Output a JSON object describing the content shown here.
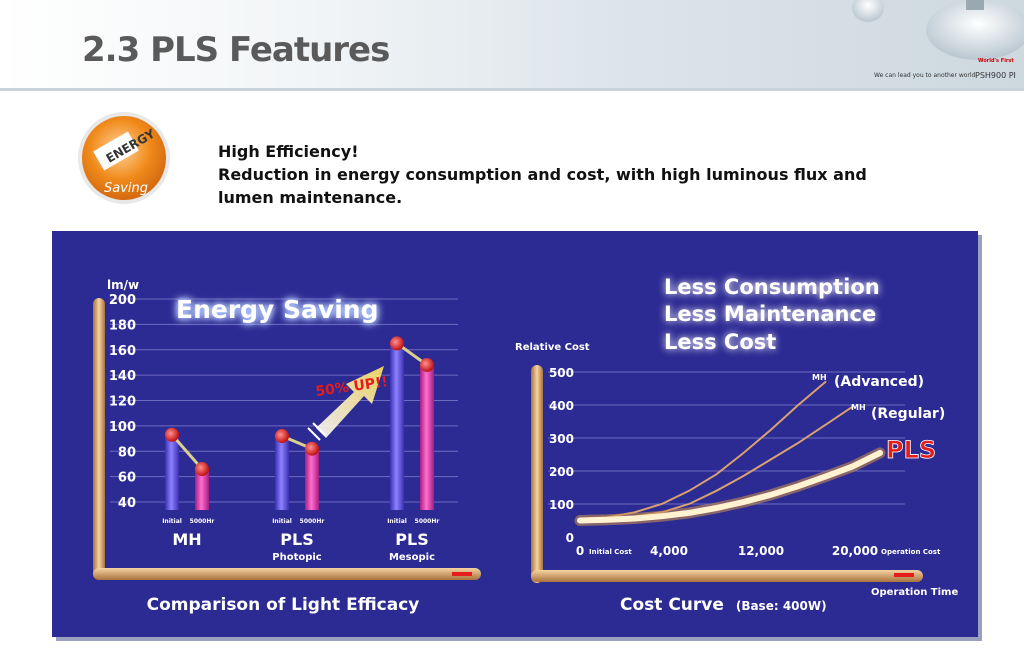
{
  "header": {
    "title": "2.3 PLS Features",
    "tagline": "We can lead you to another world",
    "brand": "PSH900 PI",
    "world_first": "World's First"
  },
  "badge": {
    "word": "ENERGY",
    "sub": "Saving"
  },
  "intro": {
    "line1": "High Efficiency!",
    "line2": "Reduction in energy consumption and cost, with high luminous flux and lumen maintenance."
  },
  "colors": {
    "panel": "#2c2a93",
    "bar_initial": "#6a5df0",
    "bar_5000": "#e93fb5",
    "axis_frame": "#d8a267",
    "accent_red": "#e51c1c"
  },
  "left_chart_title": "Energy Saving",
  "increase_label": "50% UP!!",
  "headline": [
    "Less Consumption",
    "Less Maintenance",
    "Less Cost"
  ],
  "chart_data": [
    {
      "type": "bar",
      "title": "Comparison of Light Efficacy",
      "ylabel": "lm/w",
      "ylim": [
        40,
        200
      ],
      "yticks": [
        40,
        60,
        80,
        100,
        120,
        140,
        160,
        180,
        200
      ],
      "groups": [
        {
          "name": "MH",
          "sub": "",
          "bars": [
            {
              "label": "Initial",
              "value": 93
            },
            {
              "label": "5000Hr",
              "value": 66
            }
          ]
        },
        {
          "name": "PLS",
          "sub": "Photopic",
          "bars": [
            {
              "label": "Initial",
              "value": 92
            },
            {
              "label": "5000Hr",
              "value": 82
            }
          ]
        },
        {
          "name": "PLS",
          "sub": "Mesopic",
          "bars": [
            {
              "label": "Initial",
              "value": 165
            },
            {
              "label": "5000Hr",
              "value": 148
            }
          ]
        }
      ]
    },
    {
      "type": "line",
      "title": "Cost Curve",
      "title_note": "(Base: 400W)",
      "ylabel": "Relative Cost",
      "xlabel": "Operation Time",
      "ylim": [
        0,
        500
      ],
      "yticks": [
        0,
        100,
        200,
        300,
        400,
        500
      ],
      "xticks": [
        "0",
        "4,000",
        "12,000",
        "20,000"
      ],
      "x_start_note": "Initial Cost",
      "x_end_note": "Operation Cost",
      "series": [
        {
          "name": "MH (Advanced)",
          "name_prefix": "MH",
          "name_text": "(Advanced)",
          "x": [
            0,
            0.1,
            0.2,
            0.3,
            0.4,
            0.5,
            0.6,
            0.7,
            0.8,
            0.9
          ],
          "values": [
            55,
            60,
            75,
            100,
            140,
            190,
            255,
            325,
            400,
            470
          ]
        },
        {
          "name": "MH (Regular)",
          "name_prefix": "MH",
          "name_text": "(Regular)",
          "x": [
            0,
            0.1,
            0.2,
            0.3,
            0.4,
            0.5,
            0.6,
            0.7,
            0.8,
            0.9,
            1.0
          ],
          "values": [
            55,
            57,
            62,
            75,
            100,
            140,
            185,
            235,
            285,
            340,
            395
          ]
        },
        {
          "name": "PLS",
          "name_prefix": "",
          "name_text": "PLS",
          "x": [
            0,
            0.1,
            0.2,
            0.3,
            0.4,
            0.5,
            0.6,
            0.7,
            0.8,
            0.9,
            1.0,
            1.1
          ],
          "values": [
            50,
            52,
            56,
            63,
            73,
            88,
            106,
            128,
            154,
            183,
            214,
            255
          ]
        }
      ]
    }
  ]
}
